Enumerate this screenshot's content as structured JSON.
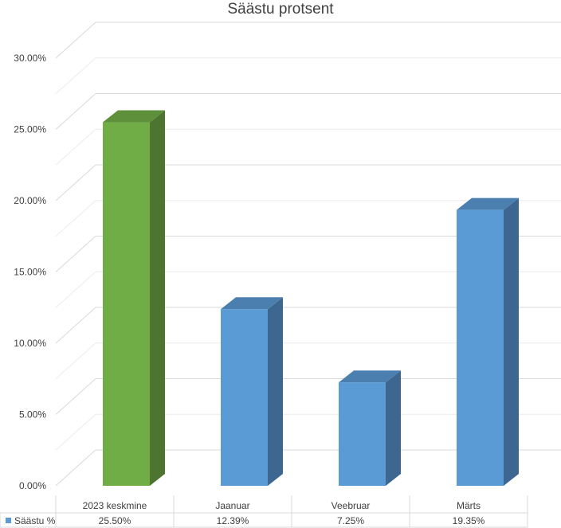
{
  "chart_data": {
    "type": "bar",
    "title": "Säästu protsent",
    "categories": [
      "2023 keskmine",
      "Jaanuar",
      "Veebruar",
      "Märts"
    ],
    "series": [
      {
        "name": "Säästu %",
        "values": [
          25.5,
          12.39,
          7.25,
          19.35
        ]
      }
    ],
    "value_labels": [
      "25.50%",
      "12.39%",
      "7.25%",
      "19.35%"
    ],
    "y_ticks": [
      "0.00%",
      "5.00%",
      "10.00%",
      "15.00%",
      "20.00%",
      "25.00%",
      "30.00%"
    ],
    "ylim": [
      0,
      30
    ],
    "grid": true,
    "data_table": true,
    "colors": {
      "highlight_front": "#70ad47",
      "highlight_top": "#5e8f3a",
      "highlight_side": "#4e7530",
      "bar_front": "#5b9bd5",
      "bar_top": "#4a7fb0",
      "bar_side": "#3d6790",
      "legend_key": "#5b9bd5",
      "grid": "#d9d9d9",
      "text": "#404040"
    }
  }
}
